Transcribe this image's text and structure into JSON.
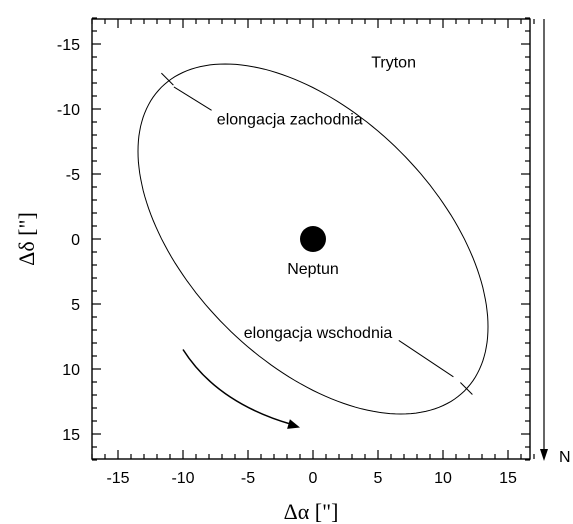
{
  "chart_data": {
    "type": "scatter",
    "title": "",
    "xlabel": "Δα [\"]",
    "ylabel": "Δδ [\"]",
    "xlim": [
      -17,
      17
    ],
    "ylim": [
      -17,
      17
    ],
    "y_inverted": true,
    "xticks": [
      -15,
      -10,
      -5,
      0,
      5,
      10,
      15
    ],
    "yticks": [
      -15,
      -10,
      -5,
      0,
      5,
      10,
      15
    ],
    "xtick_labels": [
      "-15",
      "-10",
      "-5",
      "0",
      "5",
      "10",
      "15"
    ],
    "ytick_labels": [
      "-15",
      "-10",
      "-5",
      "0",
      "5",
      "10",
      "15"
    ],
    "grid": false,
    "legend": "none",
    "orbit": {
      "name": "Tryton",
      "center": [
        0,
        0
      ],
      "semi_axes": [
        16.5,
        9.5
      ],
      "tilt_deg": 45,
      "description_points": [
        [
          -15.2,
          -4.5
        ],
        [
          -11.6,
          -12.6
        ],
        [
          4.2,
          -14.8
        ],
        [
          15.5,
          5.5
        ],
        [
          4.6,
          14.4
        ],
        [
          -11.8,
          5.3
        ]
      ]
    },
    "planet": {
      "name": "Neptun",
      "x": 0,
      "y": 0
    },
    "elongations": [
      {
        "label": "elongacja zachodnia",
        "x": -11.2,
        "y": -12.3
      },
      {
        "label": "elongacja wschodnia",
        "x": 11.8,
        "y": 11.5
      }
    ],
    "motion_arrow": {
      "from": [
        -10,
        8.5
      ],
      "to": [
        -1,
        14.5
      ]
    },
    "north_indicator": {
      "label": "N",
      "direction": "down"
    }
  }
}
